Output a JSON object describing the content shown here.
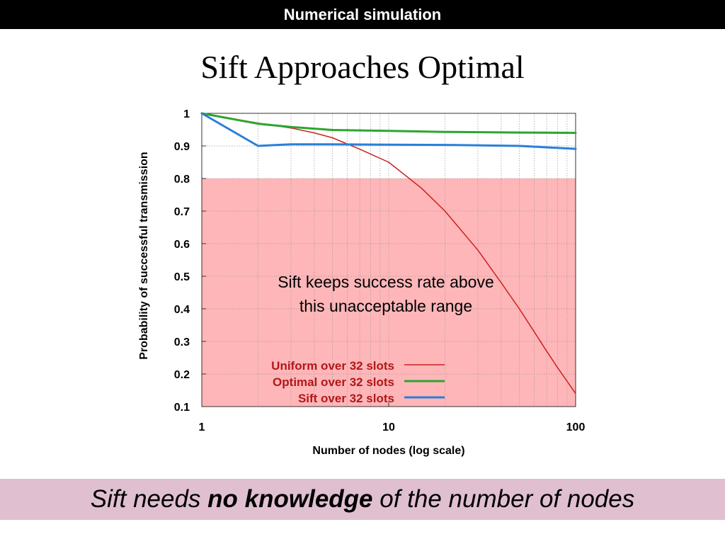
{
  "header": {
    "section_title": "Numerical simulation"
  },
  "slide": {
    "title": "Sift Approaches Optimal"
  },
  "footer": {
    "text_before": "Sift needs ",
    "text_bold": "no knowledge",
    "text_after": " of the number of nodes",
    "background": "#e0c0d0"
  },
  "chart_data": {
    "type": "line",
    "xlabel": "Number of nodes (log scale)",
    "ylabel": "Probability of successful transmission",
    "x_scale": "log",
    "xlim": [
      1,
      100
    ],
    "ylim": [
      0.1,
      1
    ],
    "x_ticks": [
      1,
      10,
      100
    ],
    "x_tick_labels": [
      "1",
      "10",
      "100"
    ],
    "y_ticks": [
      0.1,
      0.2,
      0.3,
      0.4,
      0.5,
      0.6,
      0.7,
      0.8,
      0.9,
      1
    ],
    "y_tick_labels": [
      "0.1",
      "0.2",
      "0.3",
      "0.4",
      "0.5",
      "0.6",
      "0.7",
      "0.8",
      "0.9",
      "1"
    ],
    "grid": true,
    "shaded_region": {
      "y_from": 0.1,
      "y_to": 0.8,
      "color": "#ffb6b9"
    },
    "annotation": [
      "Sift keeps success rate above",
      "this unacceptable range"
    ],
    "legend_position": "bottom-center",
    "series": [
      {
        "name": "Uniform over 32 slots",
        "color": "#cc2020",
        "label_color": "#b01818",
        "width": 1.5,
        "x": [
          1,
          2,
          3,
          4,
          5,
          7,
          10,
          15,
          20,
          30,
          40,
          50,
          60,
          70,
          80,
          100
        ],
        "y": [
          1.0,
          0.97,
          0.955,
          0.94,
          0.925,
          0.89,
          0.85,
          0.77,
          0.7,
          0.58,
          0.48,
          0.4,
          0.33,
          0.27,
          0.22,
          0.14
        ]
      },
      {
        "name": "Optimal over 32 slots",
        "color": "#2ea52e",
        "label_color": "#b01818",
        "width": 3,
        "x": [
          1,
          2,
          3,
          5,
          10,
          20,
          50,
          100
        ],
        "y": [
          1.0,
          0.968,
          0.958,
          0.949,
          0.946,
          0.943,
          0.941,
          0.94
        ]
      },
      {
        "name": "Sift over 32 slots",
        "color": "#2a7fd8",
        "label_color": "#b01818",
        "width": 3,
        "x": [
          1,
          2,
          3,
          5,
          10,
          20,
          50,
          100
        ],
        "y": [
          1.0,
          0.9,
          0.905,
          0.905,
          0.904,
          0.903,
          0.9,
          0.891
        ]
      }
    ]
  }
}
